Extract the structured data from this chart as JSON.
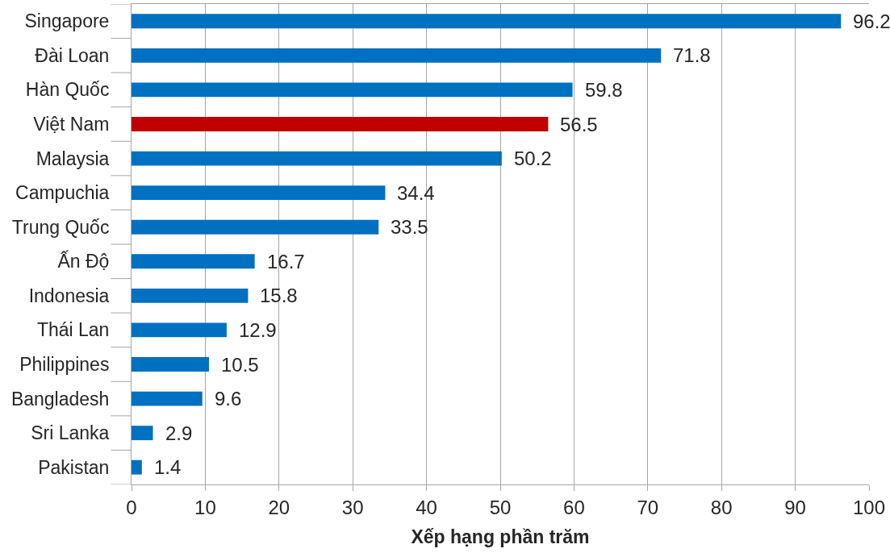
{
  "chart_data": {
    "type": "bar",
    "orientation": "horizontal",
    "xlabel": "Xếp hạng phần trăm",
    "categories": [
      "Singapore",
      "Đài Loan",
      "Hàn Quốc",
      "Việt Nam",
      "Malaysia",
      "Campuchia",
      "Trung Quốc",
      "Ấn Độ",
      "Indonesia",
      "Thái Lan",
      "Philippines",
      "Bangladesh",
      "Sri Lanka",
      "Pakistan"
    ],
    "values": [
      96.2,
      71.8,
      59.8,
      56.5,
      50.2,
      34.4,
      33.5,
      16.7,
      15.8,
      12.9,
      10.5,
      9.6,
      2.9,
      1.4
    ],
    "colors": [
      "#0070c0",
      "#0070c0",
      "#0070c0",
      "#c00000",
      "#0070c0",
      "#0070c0",
      "#0070c0",
      "#0070c0",
      "#0070c0",
      "#0070c0",
      "#0070c0",
      "#0070c0",
      "#0070c0",
      "#0070c0"
    ],
    "xlim": [
      0,
      100
    ],
    "xticks": [
      0,
      10,
      20,
      30,
      40,
      50,
      60,
      70,
      80,
      90,
      100
    ],
    "grid": "x",
    "data_labels": true
  }
}
